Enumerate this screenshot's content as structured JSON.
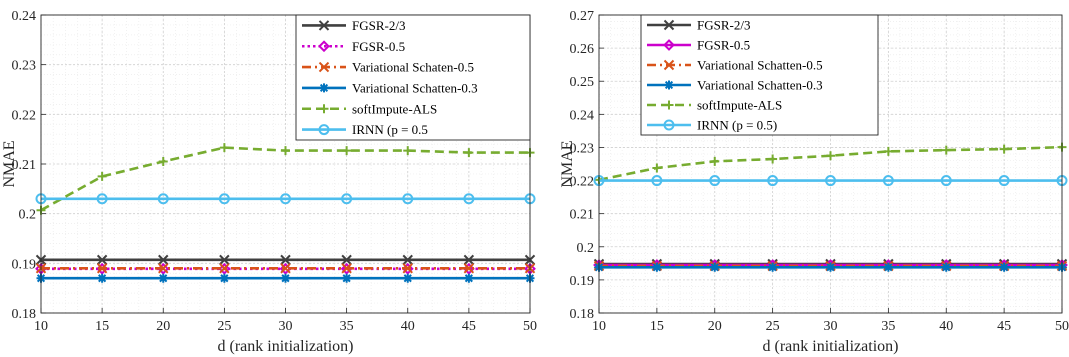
{
  "chart_data": [
    {
      "type": "line",
      "xlabel": "d (rank initialization)",
      "ylabel": "NMAE",
      "xlim": [
        10,
        50
      ],
      "ylim": [
        0.18,
        0.24
      ],
      "xticks": [
        "10",
        "15",
        "20",
        "25",
        "30",
        "35",
        "40",
        "45",
        "50"
      ],
      "yticks": [
        "0.18",
        "0.19",
        "0.2",
        "0.21",
        "0.22",
        "0.23",
        "0.24"
      ],
      "x": [
        10,
        15,
        20,
        25,
        30,
        35,
        40,
        45,
        50
      ],
      "grid": true,
      "legend_position": "top-right",
      "series": [
        {
          "name": "FGSR-2/3",
          "color": "#404040",
          "marker": "x",
          "dash": "solid",
          "values": [
            0.1907,
            0.1907,
            0.1907,
            0.1907,
            0.1907,
            0.1907,
            0.1907,
            0.1907,
            0.1907
          ]
        },
        {
          "name": "FGSR-0.5",
          "color": "#cc00cc",
          "marker": "diamond",
          "dash": "dotted",
          "values": [
            0.1889,
            0.1889,
            0.1889,
            0.1889,
            0.1889,
            0.1889,
            0.1889,
            0.1889,
            0.1889
          ]
        },
        {
          "name": "Variational Schaten-0.5",
          "color": "#d95319",
          "marker": "x",
          "dash": "dashdot",
          "values": [
            0.189,
            0.189,
            0.189,
            0.189,
            0.189,
            0.189,
            0.189,
            0.189,
            0.189
          ]
        },
        {
          "name": "Variational Schatten-0.3",
          "color": "#0072bd",
          "marker": "asterisk",
          "dash": "solid",
          "values": [
            0.187,
            0.187,
            0.187,
            0.187,
            0.187,
            0.187,
            0.187,
            0.187,
            0.187
          ]
        },
        {
          "name": "softImpute-ALS",
          "color": "#77ac30",
          "marker": "plus",
          "dash": "dashed",
          "values": [
            0.2007,
            0.2075,
            0.2105,
            0.2133,
            0.2127,
            0.2127,
            0.2127,
            0.2123,
            0.2123
          ]
        },
        {
          "name": "IRNN (p = 0.5",
          "color": "#4dbeee",
          "marker": "circle",
          "dash": "solid",
          "values": [
            0.203,
            0.203,
            0.203,
            0.203,
            0.203,
            0.203,
            0.203,
            0.203,
            0.203
          ]
        }
      ]
    },
    {
      "type": "line",
      "xlabel": "d (rank initialization)",
      "ylabel": "NMAE",
      "xlim": [
        10,
        50
      ],
      "ylim": [
        0.18,
        0.27
      ],
      "xticks": [
        "10",
        "15",
        "20",
        "25",
        "30",
        "35",
        "40",
        "45",
        "50"
      ],
      "yticks": [
        "0.18",
        "0.19",
        "0.2",
        "0.21",
        "0.22",
        "0.23",
        "0.24",
        "0.25",
        "0.26",
        "0.27"
      ],
      "x": [
        10,
        15,
        20,
        25,
        30,
        35,
        40,
        45,
        50
      ],
      "grid": true,
      "legend_position": "top-right",
      "series": [
        {
          "name": "FGSR-2/3",
          "color": "#404040",
          "marker": "x",
          "dash": "solid",
          "values": [
            0.1948,
            0.1948,
            0.1948,
            0.1948,
            0.1948,
            0.1948,
            0.1948,
            0.1948,
            0.1948
          ]
        },
        {
          "name": "FGSR-0.5",
          "color": "#cc00cc",
          "marker": "diamond",
          "dash": "solid",
          "values": [
            0.1945,
            0.1945,
            0.1945,
            0.1945,
            0.1945,
            0.1945,
            0.1945,
            0.1945,
            0.1945
          ]
        },
        {
          "name": "Variational Schatten-0.5",
          "color": "#d95319",
          "marker": "x",
          "dash": "dashdot",
          "values": [
            0.1942,
            0.1942,
            0.1942,
            0.1942,
            0.1942,
            0.1942,
            0.1942,
            0.1942,
            0.1942
          ]
        },
        {
          "name": "Variational Schatten-0.3",
          "color": "#0072bd",
          "marker": "asterisk",
          "dash": "solid",
          "values": [
            0.1938,
            0.1938,
            0.1938,
            0.1938,
            0.1938,
            0.1938,
            0.1938,
            0.1938,
            0.1938
          ]
        },
        {
          "name": "softImpute-ALS",
          "color": "#77ac30",
          "marker": "plus",
          "dash": "dashed",
          "values": [
            0.2202,
            0.2238,
            0.2258,
            0.2265,
            0.2275,
            0.2288,
            0.2292,
            0.2295,
            0.2301
          ]
        },
        {
          "name": "IRNN (p = 0.5)",
          "color": "#4dbeee",
          "marker": "circle",
          "dash": "solid",
          "values": [
            0.22,
            0.22,
            0.22,
            0.22,
            0.22,
            0.22,
            0.22,
            0.22,
            0.22
          ]
        }
      ]
    }
  ]
}
